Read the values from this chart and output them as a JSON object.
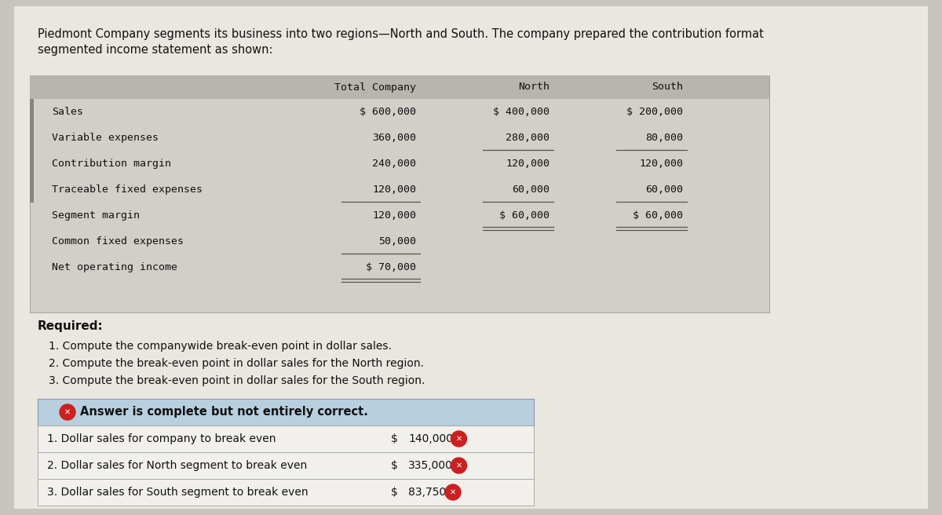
{
  "title_text_line1": "Piedmont Company segments its business into two regions—North and South. The company prepared the contribution format",
  "title_text_line2": "segmented income statement as shown:",
  "bg_color": "#c8c4be",
  "page_bg": "#eae6e0",
  "table_header": [
    "Total Company",
    "North",
    "South"
  ],
  "table_rows": [
    [
      "Sales",
      "$ 600,000",
      "$ 400,000",
      "$ 200,000"
    ],
    [
      "Variable expenses",
      "360,000",
      "280,000",
      "80,000"
    ],
    [
      "Contribution margin",
      "240,000",
      "120,000",
      "120,000"
    ],
    [
      "Traceable fixed expenses",
      "120,000",
      "60,000",
      "60,000"
    ],
    [
      "Segment margin",
      "120,000",
      "$ 60,000",
      "$ 60,000"
    ],
    [
      "Common fixed expenses",
      "50,000",
      "",
      ""
    ],
    [
      "Net operating income",
      "$ 70,000",
      "",
      ""
    ]
  ],
  "required_text": "Required:",
  "questions": [
    "1. Compute the companywide break-even point in dollar sales.",
    "2. Compute the break-even point in dollar sales for the North region.",
    "3. Compute the break-even point in dollar sales for the South region."
  ],
  "answer_banner_bg": "#b8cfe0",
  "answer_banner_text": "Answer is complete but not entirely correct.",
  "answer_rows": [
    [
      "1. Dollar sales for company to break even",
      "$",
      "140,000"
    ],
    [
      "2. Dollar sales for North segment to break even",
      "$",
      "335,000"
    ],
    [
      "3. Dollar sales for South segment to break even",
      "$",
      "83,750"
    ]
  ]
}
